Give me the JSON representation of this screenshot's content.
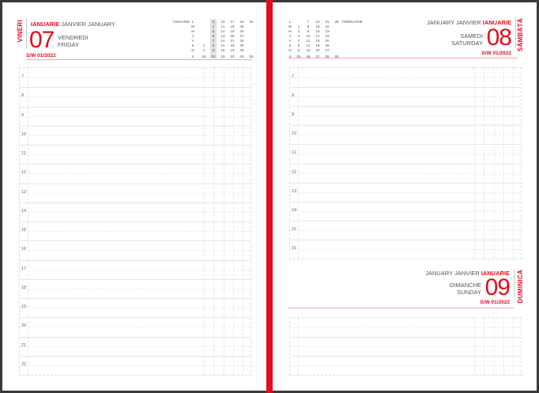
{
  "colors": {
    "accent": "#e30b1d",
    "spine": "#e30b1d",
    "frame": "#3a3a3a"
  },
  "left": {
    "weekday_vertical": "VINERI",
    "month_ro": "IANUARIE",
    "month_other": "JANVIER JANUARY",
    "day": "07",
    "weekday_fr": "VENDREDI",
    "weekday_en": "FRIDAY",
    "week": "S/W 01/2022",
    "hours": [
      "7",
      "8",
      "9",
      "10",
      "11",
      "12",
      "13",
      "14",
      "15",
      "16",
      "17",
      "18",
      "19",
      "20",
      "21",
      "22"
    ],
    "mini_calendar": {
      "month": "IANUARIE",
      "row_labels": [
        "L",
        "M",
        "M",
        "J",
        "V",
        "S",
        "D",
        "S"
      ],
      "columns": [
        [
          "",
          "",
          "",
          "",
          "",
          "1",
          "2",
          "52"
        ],
        [
          "3",
          "4",
          "5",
          "6",
          "7",
          "8",
          "9",
          "01"
        ],
        [
          "10",
          "11",
          "12",
          "13",
          "14",
          "15",
          "16",
          "02"
        ],
        [
          "17",
          "18",
          "19",
          "20",
          "21",
          "22",
          "23",
          "03"
        ],
        [
          "24",
          "25",
          "26",
          "27",
          "28",
          "29",
          "30",
          "04"
        ],
        [
          "31",
          "",
          "",
          "",
          "",
          "",
          "",
          "05"
        ]
      ],
      "highlight_column": 1
    }
  },
  "right": {
    "saturday": {
      "weekday_vertical": "SÂMBĂTĂ",
      "month_other": "JANUARY JANVIER",
      "month_ro": "IANUARIE",
      "day": "08",
      "weekday_fr": "SAMEDI",
      "weekday_en": "SATURDAY",
      "week": "S/W 01/2022"
    },
    "sunday": {
      "weekday_vertical": "DUMINICĂ",
      "month_other": "JANUARY JANVIER",
      "month_ro": "IANUARIE",
      "day": "09",
      "weekday_fr": "DIMANCHE",
      "weekday_en": "SUNDAY",
      "week": "S/W 01/2022"
    },
    "hours": [
      "7",
      "8",
      "9",
      "10",
      "11",
      "12",
      "13",
      "14",
      "15",
      "16"
    ],
    "mini_calendar": {
      "month": "FEBRUARIE",
      "row_labels": [
        "L",
        "M",
        "M",
        "J",
        "V",
        "S",
        "D",
        "S"
      ],
      "columns": [
        [
          "",
          "1",
          "2",
          "3",
          "4",
          "5",
          "6",
          "05"
        ],
        [
          "7",
          "8",
          "9",
          "10",
          "11",
          "12",
          "13",
          "06"
        ],
        [
          "14",
          "15",
          "16",
          "17",
          "18",
          "19",
          "20",
          "07"
        ],
        [
          "21",
          "22",
          "23",
          "24",
          "25",
          "26",
          "27",
          "08"
        ],
        [
          "28",
          "",
          "",
          "",
          "",
          "",
          "",
          "09"
        ]
      ]
    }
  }
}
